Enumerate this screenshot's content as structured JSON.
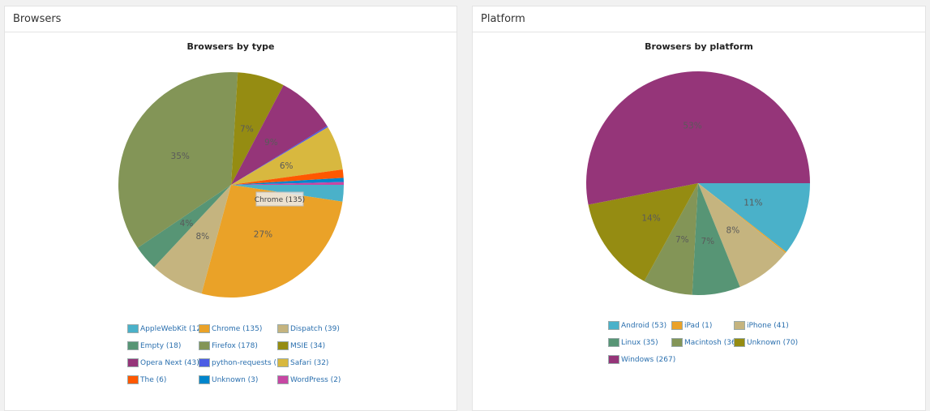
{
  "panels": {
    "browsers": {
      "header": "Browsers"
    },
    "platform": {
      "header": "Platform"
    }
  },
  "chart_data": [
    {
      "type": "pie",
      "title": "Browsers by type",
      "tooltip": "Chrome (135)",
      "series": [
        {
          "label": "AppleWebKit (12)",
          "value": 12,
          "color": "#4ab1c9"
        },
        {
          "label": "Chrome (135)",
          "value": 135,
          "color": "#eaa228"
        },
        {
          "label": "Dispatch (39)",
          "value": 39,
          "color": "#c5b47f"
        },
        {
          "label": "Empty (18)",
          "value": 18,
          "color": "#579575"
        },
        {
          "label": "Firefox (178)",
          "value": 178,
          "color": "#839557"
        },
        {
          "label": "MSIE (34)",
          "value": 34,
          "color": "#958c12"
        },
        {
          "label": "Opera Next (43)",
          "value": 43,
          "color": "#953579"
        },
        {
          "label": "python-requests (1)",
          "value": 1,
          "color": "#4b5de4"
        },
        {
          "label": "Safari (32)",
          "value": 32,
          "color": "#d8b83f"
        },
        {
          "label": "The (6)",
          "value": 6,
          "color": "#ff5800"
        },
        {
          "label": "Unknown (3)",
          "value": 3,
          "color": "#0085cc"
        },
        {
          "label": "WordPress (2)",
          "value": 2,
          "color": "#c747a3"
        }
      ],
      "data_labels": [
        "",
        "27%",
        "8%",
        "4%",
        "35%",
        "7%",
        "9%",
        "",
        "6%",
        "",
        "",
        ""
      ]
    },
    {
      "type": "pie",
      "title": "Browsers by platform",
      "series": [
        {
          "label": "Android (53)",
          "value": 53,
          "color": "#4ab1c9"
        },
        {
          "label": "iPad (1)",
          "value": 1,
          "color": "#eaa228"
        },
        {
          "label": "iPhone (41)",
          "value": 41,
          "color": "#c5b47f"
        },
        {
          "label": "Linux (35)",
          "value": 35,
          "color": "#579575"
        },
        {
          "label": "Macintosh (36)",
          "value": 36,
          "color": "#839557"
        },
        {
          "label": "Unknown (70)",
          "value": 70,
          "color": "#958c12"
        },
        {
          "label": "Windows (267)",
          "value": 267,
          "color": "#953579"
        }
      ],
      "data_labels": [
        "11%",
        "",
        "8%",
        "7%",
        "7%",
        "14%",
        "53%"
      ]
    }
  ]
}
